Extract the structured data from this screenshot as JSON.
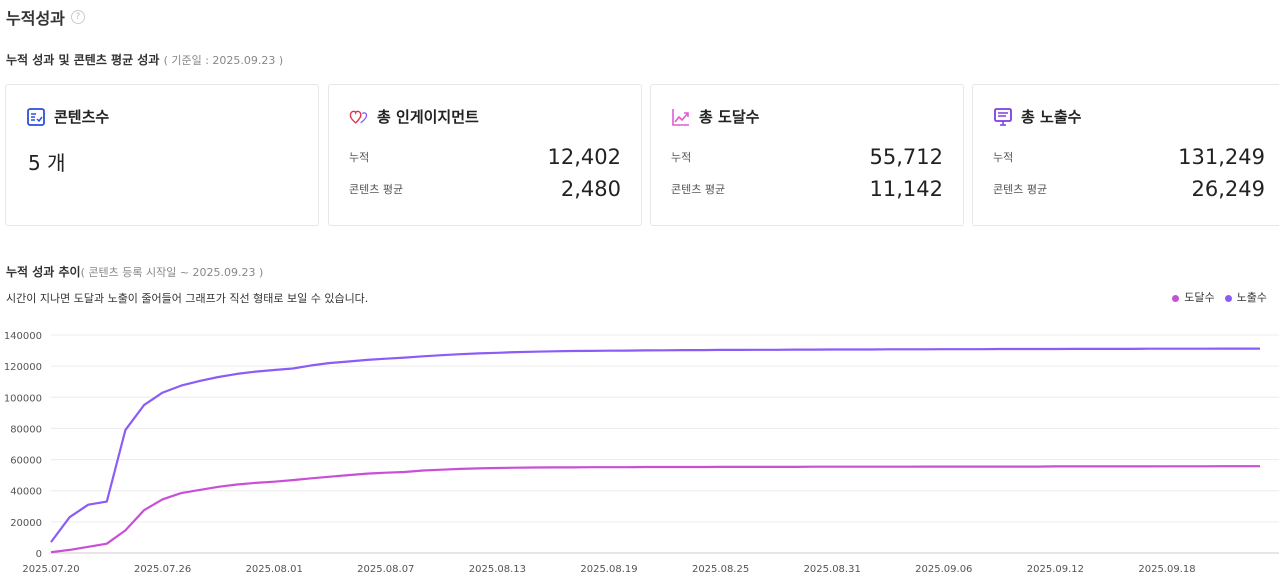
{
  "header": {
    "title": "누적성과",
    "help_icon": "?"
  },
  "summary": {
    "title": "누적 성과 및 콘텐츠 평균 성과",
    "basis": "( 기준일 : 2025.09.23 )"
  },
  "cards": [
    {
      "title": "콘텐츠수",
      "icon": "checklist-icon",
      "value": "5 개",
      "color": "#2b4fe0"
    },
    {
      "title": "총 인게이지먼트",
      "icon": "hearts-icon",
      "cumulative_label": "누적",
      "cumulative": "12,402",
      "avg_label": "콘텐츠 평균",
      "avg": "2,480"
    },
    {
      "title": "총 도달수",
      "icon": "trend-up-icon",
      "cumulative_label": "누적",
      "cumulative": "55,712",
      "avg_label": "콘텐츠 평균",
      "avg": "11,142",
      "color": "#e05ad8"
    },
    {
      "title": "총 노출수",
      "icon": "monitor-icon",
      "cumulative_label": "누적",
      "cumulative": "131,249",
      "avg_label": "콘텐츠 평균",
      "avg": "26,249",
      "color": "#7b3fe4"
    }
  ],
  "trend": {
    "title": "누적 성과 추이",
    "range": "( 콘텐츠 등록 시작일 ~ 2025.09.23 )",
    "note": "시간이 지나면 도달과 노출이 줄어들어 그래프가 직선 형태로 보일 수 있습니다."
  },
  "chart_data": {
    "type": "line",
    "ylim": [
      0,
      140000
    ],
    "yticks": [
      "0",
      "20000",
      "40000",
      "60000",
      "80000",
      "100000",
      "120000",
      "140000"
    ],
    "xticks": [
      "2025.07.20",
      "2025.07.26",
      "2025.08.01",
      "2025.08.07",
      "2025.08.13",
      "2025.08.19",
      "2025.08.25",
      "2025.08.31",
      "2025.09.06",
      "2025.09.12",
      "2025.09.18"
    ],
    "x_start": "2025.07.20",
    "x_end": "2025.09.23",
    "grid": true,
    "legend": "top-right",
    "series": [
      {
        "name": "도달수",
        "color": "#c94fd6",
        "values": [
          500,
          2000,
          4000,
          6000,
          14500,
          27500,
          34500,
          38500,
          40500,
          42500,
          44000,
          45000,
          45800,
          46800,
          48000,
          49000,
          50000,
          51000,
          51600,
          52000,
          53000,
          53500,
          54000,
          54300,
          54600,
          54800,
          54900,
          55000,
          55000,
          55100,
          55100,
          55100,
          55200,
          55200,
          55200,
          55200,
          55300,
          55300,
          55300,
          55300,
          55300,
          55400,
          55400,
          55400,
          55400,
          55400,
          55400,
          55500,
          55500,
          55500,
          55500,
          55500,
          55500,
          55500,
          55600,
          55600,
          55600,
          55600,
          55600,
          55600,
          55700,
          55700,
          55700,
          55712,
          55712,
          55712
        ]
      },
      {
        "name": "노출수",
        "color": "#8b5cf6",
        "values": [
          7000,
          23000,
          31000,
          33000,
          79000,
          95000,
          103000,
          107500,
          110500,
          113000,
          115000,
          116500,
          117500,
          118500,
          120500,
          122000,
          123000,
          124000,
          124800,
          125500,
          126300,
          127000,
          127700,
          128200,
          128600,
          129000,
          129300,
          129500,
          129700,
          129800,
          129900,
          130000,
          130100,
          130200,
          130300,
          130300,
          130400,
          130400,
          130500,
          130500,
          130600,
          130600,
          130700,
          130700,
          130700,
          130800,
          130800,
          130800,
          130900,
          130900,
          130900,
          131000,
          131000,
          131000,
          131000,
          131100,
          131100,
          131100,
          131100,
          131200,
          131200,
          131200,
          131200,
          131249,
          131249,
          131249
        ]
      }
    ]
  }
}
